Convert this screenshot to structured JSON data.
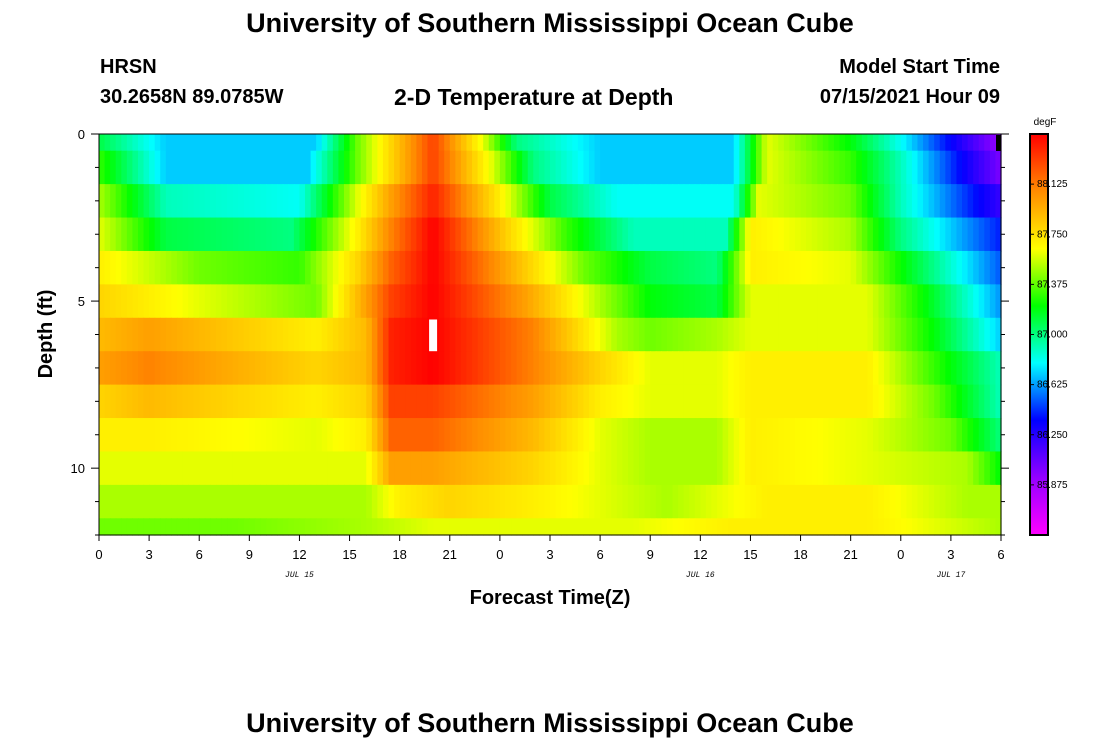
{
  "header": {
    "title": "University of Southern Mississippi Ocean Cube",
    "station": "HRSN",
    "coordinates": "30.2658N  89.0785W",
    "subtitle": "2-D Temperature at Depth",
    "model_label": "Model Start Time",
    "model_time": "07/15/2021 Hour 09"
  },
  "footer": {
    "title": "University of Southern Mississippi Ocean Cube"
  },
  "chart_data": {
    "type": "heatmap",
    "title": "2-D Temperature at Depth",
    "xlabel": "Forecast Time(Z)",
    "ylabel": "Depth (ft)",
    "x_hours": [
      0,
      54
    ],
    "x_tick_labels": [
      "0",
      "3",
      "6",
      "9",
      "12",
      "15",
      "18",
      "21",
      "0",
      "3",
      "6",
      "9",
      "12",
      "15",
      "18",
      "21",
      "0",
      "3",
      "6"
    ],
    "date_labels": [
      {
        "text": "JUL 15",
        "hour": 12
      },
      {
        "text": "JUL 16",
        "hour": 36
      },
      {
        "text": "JUL 17",
        "hour": 51
      }
    ],
    "ylim": [
      0,
      12
    ],
    "y_tick_labels": [
      "0",
      "5",
      "10"
    ],
    "y_ticks": [
      0,
      5,
      10
    ],
    "colorbar": {
      "unit": "degF",
      "min": 85.5,
      "max": 88.5,
      "tick_values": [
        88.125,
        87.75,
        87.375,
        87.0,
        86.625,
        86.25,
        85.875
      ],
      "tick_labels": [
        "88.125",
        "87.750",
        "87.375",
        "87.000",
        "86.625",
        "86.250",
        "85.875"
      ],
      "colors": [
        "#ff00ff",
        "#9400ff",
        "#0000ff",
        "#00ffff",
        "#00ff00",
        "#ffff00",
        "#ff8c00",
        "#ff0000"
      ]
    },
    "depth_rows": [
      {
        "depth": 0,
        "key_hours": [
          0,
          4,
          13,
          15.5,
          17.5,
          20,
          23,
          25,
          30,
          38,
          40,
          45,
          48,
          54
        ],
        "values": [
          87.1,
          86.7,
          86.7,
          87.4,
          87.8,
          88.3,
          87.6,
          87.0,
          86.7,
          86.7,
          87.6,
          87.2,
          86.8,
          85.9
        ]
      },
      {
        "depth": 1,
        "key_hours": [
          0,
          4,
          12.5,
          15.5,
          17.5,
          20,
          23.5,
          26,
          30,
          38,
          40,
          45,
          48,
          54
        ],
        "values": [
          87.3,
          86.7,
          86.7,
          87.4,
          87.8,
          88.3,
          87.6,
          87.0,
          86.7,
          86.7,
          87.6,
          87.3,
          86.9,
          86.0
        ]
      },
      {
        "depth": 2,
        "key_hours": [
          0,
          4,
          12,
          15.5,
          17.5,
          20,
          24,
          27,
          31,
          38,
          39.5,
          45,
          48,
          54
        ],
        "values": [
          87.5,
          86.9,
          86.8,
          87.6,
          88.0,
          88.4,
          87.7,
          87.1,
          86.8,
          86.8,
          87.6,
          87.4,
          86.9,
          86.2
        ]
      },
      {
        "depth": 3,
        "key_hours": [
          0,
          4,
          11.5,
          15.5,
          17.5,
          20,
          24.5,
          28,
          32,
          37.5,
          39,
          45,
          48,
          54
        ],
        "values": [
          87.6,
          87.1,
          87.0,
          87.7,
          88.1,
          88.5,
          87.8,
          87.3,
          86.9,
          86.9,
          87.7,
          87.5,
          87.0,
          86.4
        ]
      },
      {
        "depth": 4,
        "key_hours": [
          0,
          6,
          12,
          15.5,
          17.5,
          20,
          25,
          29,
          33,
          37,
          39,
          45,
          49,
          54
        ],
        "values": [
          87.7,
          87.4,
          87.3,
          87.8,
          88.2,
          88.5,
          87.9,
          87.4,
          87.1,
          87.0,
          87.7,
          87.6,
          87.1,
          86.5
        ]
      },
      {
        "depth": 5,
        "key_hours": [
          0,
          6,
          13,
          15.5,
          17.5,
          20,
          25.5,
          30,
          33,
          37,
          39,
          46,
          49.5,
          54
        ],
        "values": [
          87.8,
          87.6,
          87.4,
          87.9,
          88.3,
          88.5,
          88.0,
          87.5,
          87.2,
          87.1,
          87.6,
          87.6,
          87.2,
          86.6
        ]
      },
      {
        "depth": 6,
        "key_hours": [
          0,
          3,
          13,
          16,
          17.5,
          20,
          26,
          31,
          33,
          37,
          39,
          46,
          50,
          54
        ],
        "values": [
          87.9,
          88.0,
          87.7,
          87.9,
          88.4,
          88.5,
          88.1,
          87.5,
          87.4,
          87.5,
          87.6,
          87.6,
          87.2,
          86.7
        ]
      },
      {
        "depth": 7,
        "key_hours": [
          0,
          3,
          13,
          16,
          17.5,
          20,
          26,
          30,
          33,
          37,
          39,
          46,
          50,
          54
        ],
        "values": [
          88.0,
          88.1,
          87.8,
          87.9,
          88.4,
          88.5,
          88.1,
          87.8,
          87.6,
          87.6,
          87.7,
          87.7,
          87.3,
          86.9
        ]
      },
      {
        "depth": 8,
        "key_hours": [
          0,
          3,
          13,
          16,
          17.5,
          20,
          26,
          30,
          33,
          37,
          39,
          46,
          50,
          54
        ],
        "values": [
          87.8,
          87.9,
          87.7,
          87.8,
          88.3,
          88.3,
          88.0,
          87.7,
          87.6,
          87.6,
          87.7,
          87.7,
          87.4,
          86.9
        ]
      },
      {
        "depth": 9,
        "key_hours": [
          0,
          3,
          13,
          16,
          17.5,
          20,
          26,
          30,
          33,
          37,
          39,
          46,
          51,
          54
        ],
        "values": [
          87.7,
          87.7,
          87.6,
          87.7,
          88.2,
          88.2,
          87.9,
          87.6,
          87.5,
          87.5,
          87.7,
          87.6,
          87.4,
          87.0
        ]
      },
      {
        "depth": 10,
        "key_hours": [
          0,
          3,
          13,
          16,
          17.5,
          20,
          26,
          30,
          33,
          37,
          39,
          46,
          52,
          54
        ],
        "values": [
          87.6,
          87.6,
          87.6,
          87.6,
          88.0,
          88.0,
          87.8,
          87.6,
          87.5,
          87.5,
          87.7,
          87.6,
          87.5,
          87.2
        ]
      },
      {
        "depth": 11,
        "key_hours": [
          0,
          6,
          13,
          16,
          18,
          21,
          26,
          30,
          34,
          37,
          40,
          46,
          52,
          54
        ],
        "values": [
          87.5,
          87.5,
          87.5,
          87.5,
          87.7,
          87.8,
          87.7,
          87.6,
          87.5,
          87.6,
          87.7,
          87.7,
          87.5,
          87.5
        ]
      },
      {
        "depth": 12,
        "key_hours": [
          0,
          8,
          16,
          20,
          26,
          32,
          38,
          46,
          54
        ],
        "values": [
          87.4,
          87.4,
          87.5,
          87.6,
          87.6,
          87.6,
          87.7,
          87.7,
          87.5
        ]
      }
    ],
    "markers": [
      {
        "name": "current-time-marker",
        "hour": 20,
        "depth_top": 5.55,
        "depth_bottom": 6.5,
        "color": "#ffffff"
      }
    ]
  }
}
